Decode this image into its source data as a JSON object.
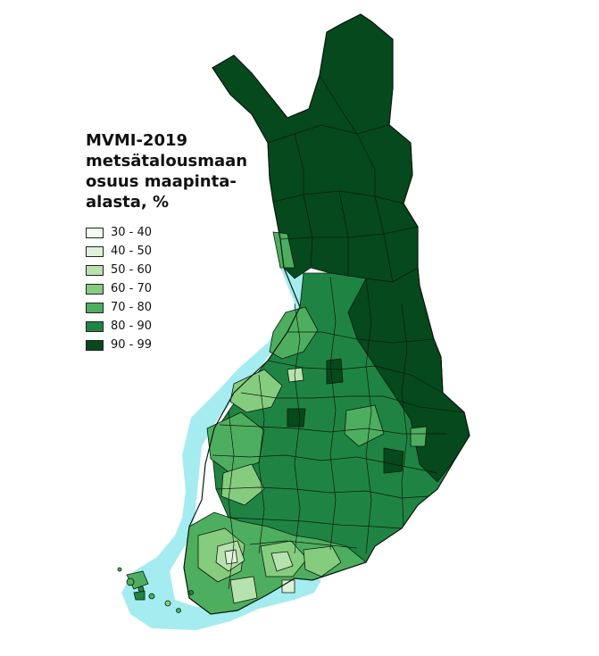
{
  "legend": {
    "title_lines": [
      "MVMI-2019",
      "metsätalousmaan",
      "osuus maapinta-",
      "alasta, %"
    ],
    "classes": [
      {
        "label": "30 - 40",
        "color": "#f4fbf2"
      },
      {
        "label": "40 - 50",
        "color": "#dff2d9"
      },
      {
        "label": "50 - 60",
        "color": "#b7e2ad"
      },
      {
        "label": "60 - 70",
        "color": "#86cc7f"
      },
      {
        "label": "70 - 80",
        "color": "#4eae5f"
      },
      {
        "label": "80 - 90",
        "color": "#1f8443"
      },
      {
        "label": "90 - 99",
        "color": "#05491c"
      }
    ]
  },
  "colors": {
    "sea": "#a4ecf0",
    "border": "#0b1a0b"
  }
}
